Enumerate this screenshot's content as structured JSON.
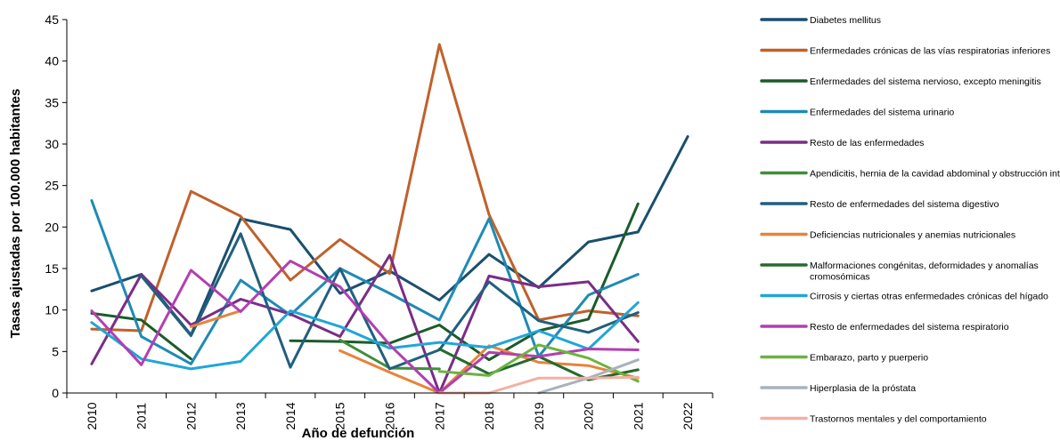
{
  "chart_data": {
    "type": "line",
    "xlabel": "Año de defunción",
    "ylabel": "Tasas ajustadas por 100.000 habitantes",
    "ylim": [
      0,
      45
    ],
    "yticks": [
      "0",
      "5",
      "10",
      "15",
      "20",
      "25",
      "30",
      "35",
      "40",
      "45"
    ],
    "x": [
      "2010",
      "2011",
      "2012",
      "2013",
      "2014",
      "2015",
      "2016",
      "2017",
      "2018",
      "2019",
      "2020",
      "2021",
      "2022"
    ],
    "grid": false,
    "legend_position": "right",
    "series": [
      {
        "name": "Diabetes mellitus",
        "color": "#1a4f6e",
        "values": [
          12.3,
          14.3,
          7.0,
          21.0,
          19.7,
          12.0,
          14.7,
          11.2,
          16.7,
          12.7,
          18.2,
          19.4,
          30.9
        ]
      },
      {
        "name": "Enfermedades crónicas de las vías respiratorias inferiores",
        "color": "#c0612b",
        "values": [
          7.7,
          7.5,
          24.3,
          21.3,
          13.6,
          18.5,
          14.4,
          42.0,
          21.5,
          8.8,
          9.9,
          9.3,
          null
        ]
      },
      {
        "name": "Enfermedades del sistema nervioso, excepto meningitis",
        "color": "#1c5b2a",
        "values": [
          9.6,
          8.8,
          4.1,
          null,
          6.3,
          6.2,
          6.0,
          8.2,
          4.0,
          7.5,
          8.9,
          22.8,
          null
        ]
      },
      {
        "name": "Enfermedades del sistema urinario",
        "color": "#1f8ab5",
        "values": [
          23.2,
          6.8,
          3.5,
          13.6,
          9.4,
          15.0,
          12.0,
          8.8,
          21.0,
          4.4,
          11.8,
          14.3,
          null
        ]
      },
      {
        "name": "Resto de las enfermedades",
        "color": "#7b2d86",
        "values": [
          3.5,
          14.3,
          8.2,
          11.3,
          9.5,
          6.8,
          16.6,
          0.0,
          14.1,
          12.8,
          13.4,
          6.2,
          null
        ]
      },
      {
        "name": "Apendicitis, hernia de la cavidad abdominal y obstrucción intestinal",
        "color": "#3f8f3a",
        "values": [
          null,
          null,
          null,
          null,
          null,
          6.4,
          3.0,
          2.9,
          null,
          null,
          null,
          null,
          null
        ]
      },
      {
        "name": "Resto de enfermedades del sistema digestivo",
        "color": "#215f7e",
        "values": [
          null,
          14.1,
          6.9,
          19.2,
          3.1,
          15.0,
          2.9,
          5.2,
          13.4,
          8.7,
          7.3,
          9.7,
          null
        ]
      },
      {
        "name": "Deficiencias nutricionales y anemias nutricionales",
        "color": "#e8833a",
        "values": [
          null,
          null,
          8.0,
          9.9,
          null,
          5.1,
          2.5,
          0.0,
          5.7,
          3.7,
          3.3,
          1.8,
          null
        ]
      },
      {
        "name": "Malformaciones congénitas, deformidades y anomalías cromosómicas",
        "color": "#236b2e",
        "values": [
          null,
          null,
          null,
          null,
          null,
          null,
          null,
          5.3,
          2.3,
          4.4,
          1.6,
          2.8,
          null
        ]
      },
      {
        "name": "Cirrosis y ciertas otras enfermedades crónicas del hígado",
        "color": "#21a6d6",
        "values": [
          8.5,
          4.1,
          2.9,
          3.8,
          9.9,
          8.0,
          5.4,
          6.1,
          5.5,
          7.5,
          5.3,
          10.9,
          null
        ]
      },
      {
        "name": "Resto de enfermedades del sistema respiratorio",
        "color": "#b23fb0",
        "values": [
          9.9,
          3.4,
          14.8,
          9.8,
          15.9,
          12.8,
          5.8,
          0.0,
          4.9,
          4.4,
          5.3,
          5.2,
          null
        ]
      },
      {
        "name": "Embarazo, parto y puerperio",
        "color": "#6cb33f",
        "values": [
          null,
          null,
          null,
          null,
          null,
          null,
          null,
          2.6,
          2.1,
          5.8,
          4.2,
          1.4,
          null
        ]
      },
      {
        "name": "Hiperplasia de la próstata",
        "color": "#a8b2bb",
        "values": [
          null,
          null,
          null,
          null,
          null,
          null,
          null,
          null,
          null,
          0.0,
          1.8,
          4.0,
          null
        ]
      },
      {
        "name": "Trastornos mentales y del comportamiento",
        "color": "#f2b0a2",
        "values": [
          null,
          null,
          null,
          null,
          null,
          null,
          null,
          0.0,
          0.0,
          1.8,
          1.8,
          1.9,
          null
        ]
      }
    ]
  }
}
